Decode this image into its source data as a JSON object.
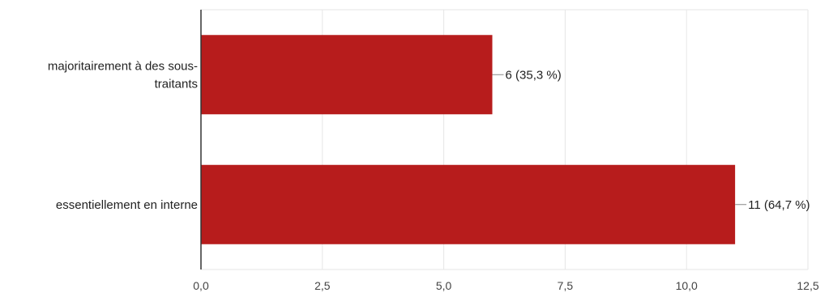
{
  "chart_data": {
    "type": "bar",
    "orientation": "horizontal",
    "categories": [
      "majoritairement à des sous-traitants",
      "essentiellement en interne"
    ],
    "category_label_lines": [
      [
        "majoritairement à des sous-",
        "traitants"
      ],
      [
        "essentiellement en interne"
      ]
    ],
    "values": [
      6,
      11
    ],
    "data_labels": [
      "6 (35,3 %)",
      "11 (64,7 %)"
    ],
    "xlim": [
      0,
      12.5
    ],
    "x_ticks": [
      0,
      2.5,
      5,
      7.5,
      10,
      12.5
    ],
    "x_tick_labels": [
      "0,0",
      "2,5",
      "5,0",
      "7,5",
      "10,0",
      "12,5"
    ],
    "grid": true,
    "colors": {
      "bar": "#b71c1c",
      "grid": "#e6e6e6",
      "axis": "#333333",
      "leader": "#888888"
    }
  }
}
